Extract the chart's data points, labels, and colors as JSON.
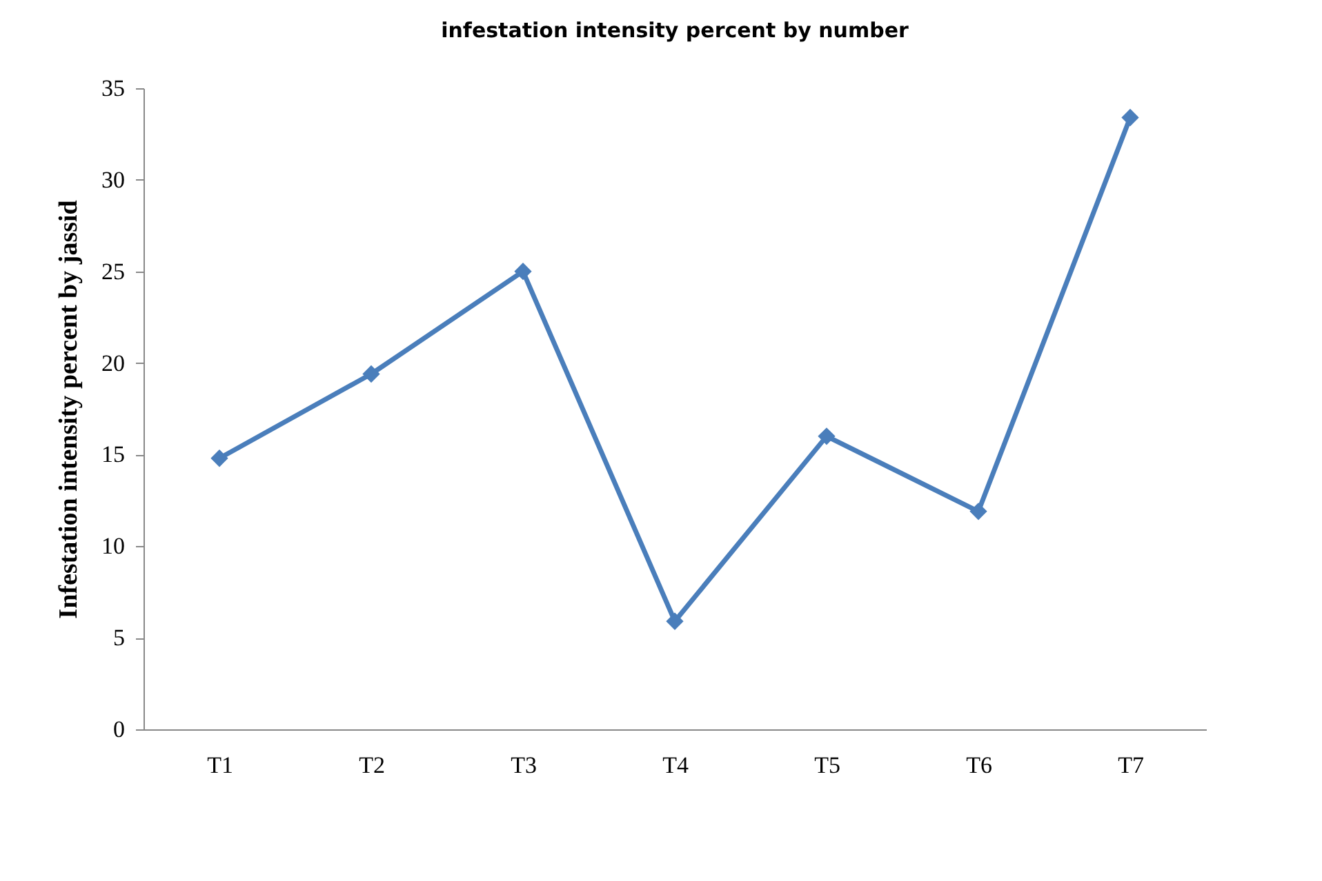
{
  "chart_data": {
    "type": "line",
    "title": "infestation intensity percent by number",
    "ylabel": "Infestation intensity percent  by jassid",
    "categories": [
      "T1",
      "T2",
      "T3",
      "T4",
      "T5",
      "T6",
      "T7"
    ],
    "series": [
      {
        "color": "#4a7ebb",
        "values": [
          14.8,
          19.4,
          25.0,
          5.9,
          16.0,
          11.9,
          33.4
        ]
      }
    ],
    "ylim": [
      0,
      35
    ],
    "yticks": [
      0,
      5,
      10,
      15,
      20,
      25,
      30,
      35
    ],
    "grid": false,
    "marker": "diamond",
    "line_style": "solid"
  }
}
